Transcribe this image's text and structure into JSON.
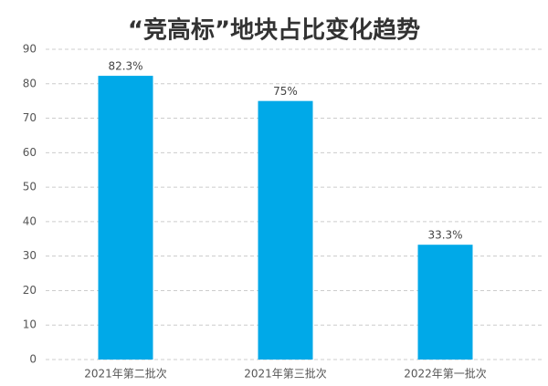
{
  "chart_data": {
    "type": "bar",
    "title": "“竞高标”地块占比变化趋势",
    "categories": [
      "2021年第二批次",
      "2021年第三批次",
      "2022年第一批次"
    ],
    "values": [
      82.3,
      75,
      33.3
    ],
    "value_labels": [
      "82.3%",
      "75%",
      "33.3%"
    ],
    "color": "#00a9e8",
    "ylim": [
      0,
      90
    ],
    "yticks": [
      0,
      10,
      20,
      30,
      40,
      50,
      60,
      70,
      80,
      90
    ],
    "grid": true
  }
}
